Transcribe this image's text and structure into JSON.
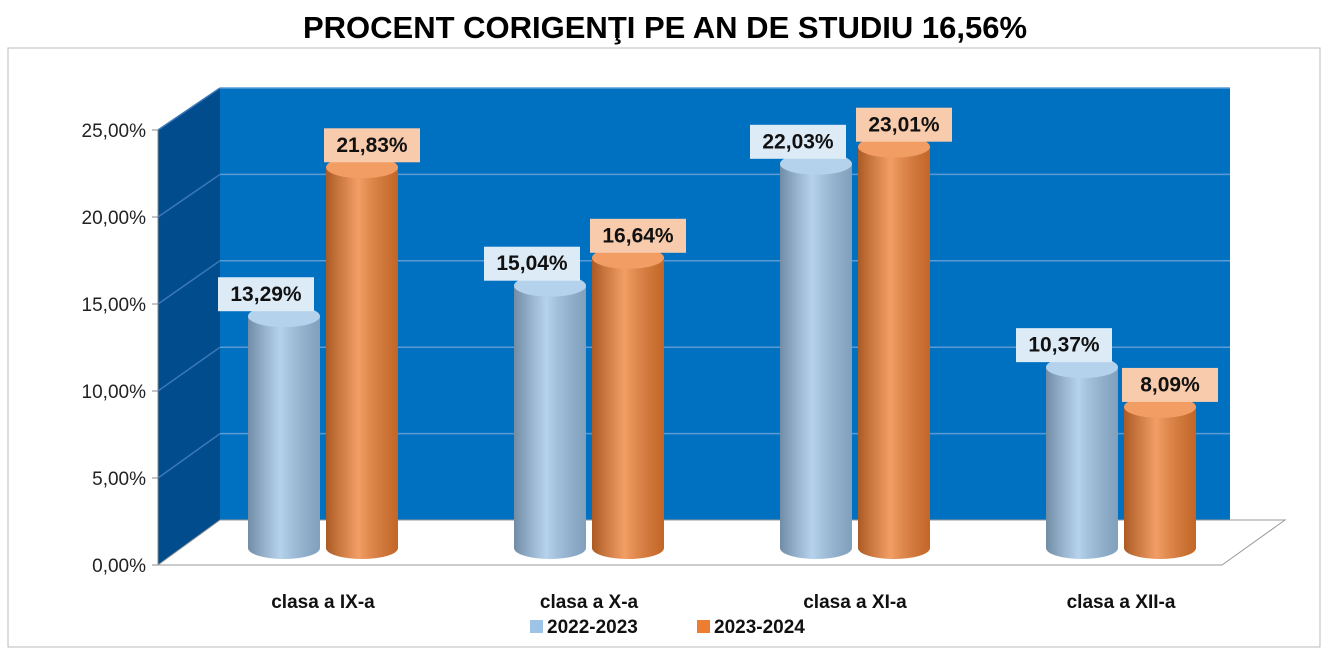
{
  "chart_data": {
    "type": "bar3d",
    "title": "PROCENT CORIGENŢI PE AN DE STUDIU 16,56%",
    "categories": [
      "clasa a IX-a",
      "clasa a X-a",
      "clasa a XI-a",
      "clasa a XII-a"
    ],
    "series": [
      {
        "name": "2022-2023",
        "color": "#9dc3e6",
        "values": [
          13.29,
          15.04,
          22.03,
          10.37
        ],
        "value_labels": [
          "13,29%",
          "15,04%",
          "22,03%",
          "10,37%"
        ]
      },
      {
        "name": "2023-2024",
        "color": "#ed7d31",
        "values": [
          21.83,
          16.64,
          23.01,
          8.09
        ],
        "value_labels": [
          "21,83%",
          "16,64%",
          "23,01%",
          "8,09%"
        ]
      }
    ],
    "ylim": [
      0,
      25
    ],
    "yticks": [
      {
        "value": 0,
        "label": "0,00%"
      },
      {
        "value": 5,
        "label": "5,00%"
      },
      {
        "value": 10,
        "label": "10,00%"
      },
      {
        "value": 15,
        "label": "15,00%"
      },
      {
        "value": 20,
        "label": "20,00%"
      },
      {
        "value": 25,
        "label": "25,00%"
      }
    ],
    "grid": true
  }
}
